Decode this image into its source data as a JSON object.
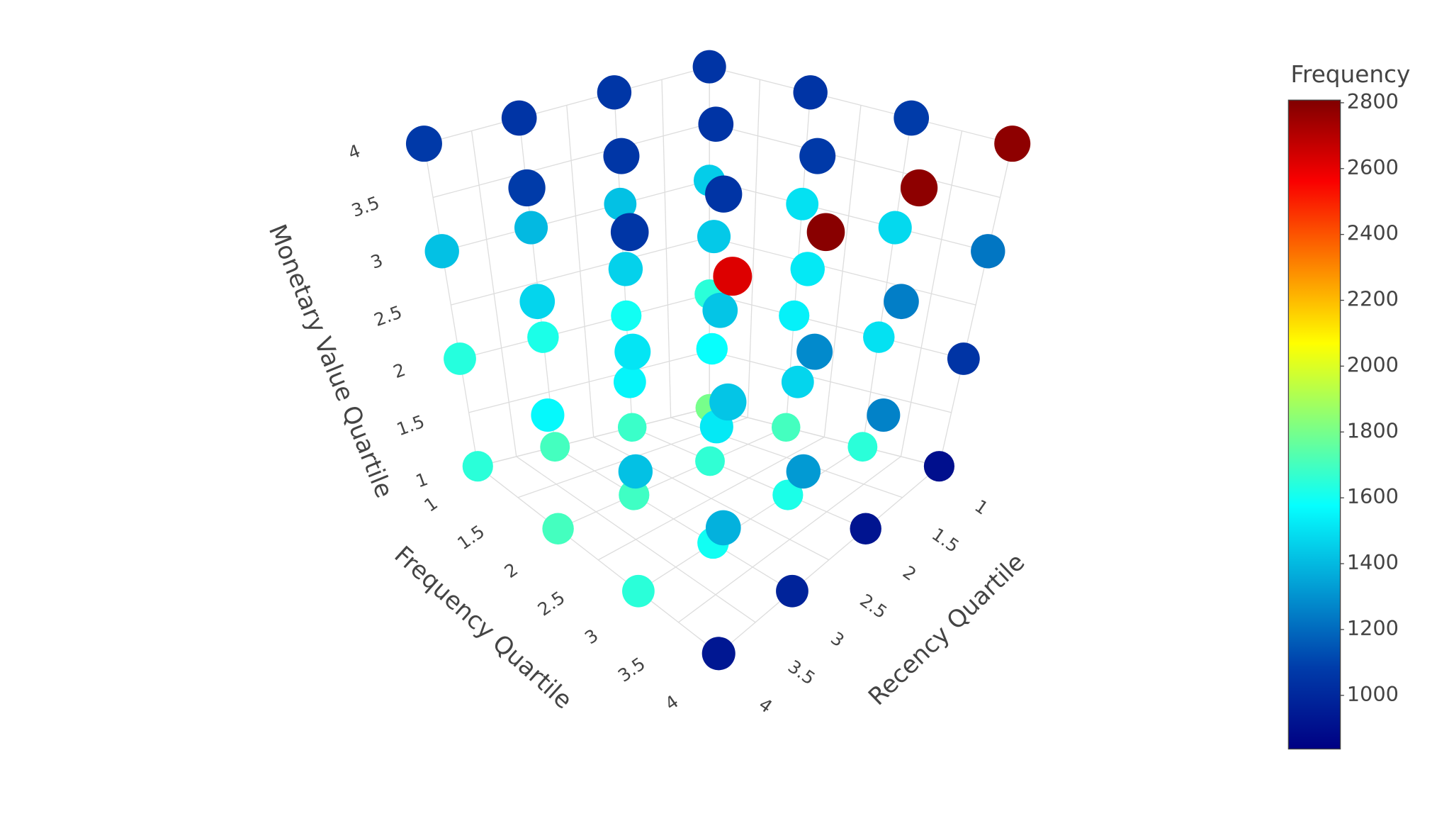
{
  "chart_data": {
    "type": "scatter3d",
    "x_label": "Recency Quartile",
    "y_label": "Frequency Quartile",
    "z_label": "Monetary Value Quartile",
    "xlim": [
      1,
      4
    ],
    "ylim": [
      1,
      4
    ],
    "zlim": [
      1,
      4
    ],
    "xticks": [
      1,
      1.5,
      2,
      2.5,
      3,
      3.5,
      4
    ],
    "yticks": [
      1,
      1.5,
      2,
      2.5,
      3,
      3.5,
      4
    ],
    "zticks": [
      1,
      1.5,
      2,
      2.5,
      3,
      3.5,
      4
    ],
    "grid": true,
    "x": [
      1,
      1,
      1,
      1,
      2,
      2,
      2,
      2,
      3,
      3,
      3,
      3,
      4,
      4,
      4,
      4,
      1,
      1,
      1,
      1,
      2,
      2,
      2,
      2,
      3,
      3,
      3,
      3,
      4,
      4,
      4,
      4,
      1,
      1,
      1,
      1,
      2,
      2,
      2,
      2,
      3,
      3,
      3,
      3,
      4,
      4,
      4,
      4,
      1,
      1,
      1,
      1,
      2,
      2,
      2,
      2,
      3,
      3,
      3,
      3,
      4,
      4,
      4,
      4
    ],
    "y": [
      1,
      2,
      3,
      4,
      1,
      2,
      3,
      4,
      1,
      2,
      3,
      4,
      1,
      2,
      3,
      4,
      1,
      2,
      3,
      4,
      1,
      2,
      3,
      4,
      1,
      2,
      3,
      4,
      1,
      2,
      3,
      4,
      1,
      2,
      3,
      4,
      1,
      2,
      3,
      4,
      1,
      2,
      3,
      4,
      1,
      2,
      3,
      4,
      1,
      2,
      3,
      4,
      1,
      2,
      3,
      4,
      1,
      2,
      3,
      4,
      1,
      2,
      3,
      4
    ],
    "z": [
      1,
      1,
      1,
      1,
      1,
      1,
      1,
      1,
      1,
      1,
      1,
      1,
      1,
      1,
      1,
      1,
      2,
      2,
      2,
      2,
      2,
      2,
      2,
      2,
      2,
      2,
      2,
      2,
      2,
      2,
      2,
      2,
      3,
      3,
      3,
      3,
      3,
      3,
      3,
      3,
      3,
      3,
      3,
      3,
      3,
      3,
      3,
      3,
      4,
      4,
      4,
      4,
      4,
      4,
      4,
      4,
      4,
      4,
      4,
      4,
      4,
      4,
      4,
      4
    ],
    "values": [
      1800,
      1700,
      1650,
      900,
      1680,
      1660,
      1620,
      920,
      1700,
      1690,
      1600,
      980,
      1650,
      1700,
      1650,
      930,
      1650,
      1540,
      1500,
      1050,
      1600,
      1580,
      1470,
      1260,
      1620,
      1550,
      1520,
      1320,
      1640,
      1560,
      1420,
      1380,
      1450,
      1500,
      1480,
      1230,
      1420,
      1440,
      1520,
      1250,
      1400,
      1460,
      1430,
      1280,
      1420,
      1470,
      1510,
      1430,
      1050,
      1050,
      1080,
      2780,
      1060,
      1050,
      1070,
      2780,
      1050,
      1060,
      1050,
      2790,
      1070,
      1080,
      1060,
      2620
    ],
    "colorbar": {
      "title": "Frequency",
      "colorscale": "Jet",
      "clim": [
        837,
        2808
      ],
      "ticks": [
        1000,
        1200,
        1400,
        1600,
        1800,
        2000,
        2200,
        2400,
        2600,
        2800
      ]
    }
  }
}
